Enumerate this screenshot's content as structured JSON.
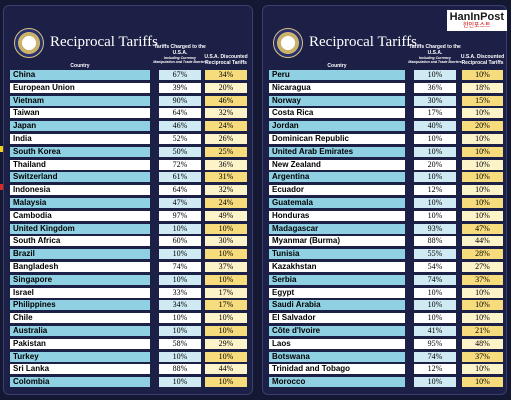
{
  "panels": [
    {
      "title": "Reciprocal Tariffs",
      "headers": {
        "country": "Country",
        "charged": "Tariffs Charged to the U.S.A.",
        "charged_note": "Including Currency Manipulation and Trade Barriers",
        "discounted": "U.S.A. Discounted Reciprocal Tariffs"
      },
      "rows": [
        [
          "China",
          "67%",
          "34%"
        ],
        [
          "European Union",
          "39%",
          "20%"
        ],
        [
          "Vietnam",
          "90%",
          "46%"
        ],
        [
          "Taiwan",
          "64%",
          "32%"
        ],
        [
          "Japan",
          "46%",
          "24%"
        ],
        [
          "India",
          "52%",
          "26%"
        ],
        [
          "South Korea",
          "50%",
          "25%"
        ],
        [
          "Thailand",
          "72%",
          "36%"
        ],
        [
          "Switzerland",
          "61%",
          "31%"
        ],
        [
          "Indonesia",
          "64%",
          "32%"
        ],
        [
          "Malaysia",
          "47%",
          "24%"
        ],
        [
          "Cambodia",
          "97%",
          "49%"
        ],
        [
          "United Kingdom",
          "10%",
          "10%"
        ],
        [
          "South Africa",
          "60%",
          "30%"
        ],
        [
          "Brazil",
          "10%",
          "10%"
        ],
        [
          "Bangladesh",
          "74%",
          "37%"
        ],
        [
          "Singapore",
          "10%",
          "10%"
        ],
        [
          "Israel",
          "33%",
          "17%"
        ],
        [
          "Philippines",
          "34%",
          "17%"
        ],
        [
          "Chile",
          "10%",
          "10%"
        ],
        [
          "Australia",
          "10%",
          "10%"
        ],
        [
          "Pakistan",
          "58%",
          "29%"
        ],
        [
          "Turkey",
          "10%",
          "10%"
        ],
        [
          "Sri Lanka",
          "88%",
          "44%"
        ],
        [
          "Colombia",
          "10%",
          "10%"
        ]
      ]
    },
    {
      "title": "Reciprocal Tariffs",
      "headers": {
        "country": "Country",
        "charged": "Tariffs Charged to the U.S.A.",
        "charged_note": "Including Currency Manipulation and Trade Barriers",
        "discounted": "U.S.A. Discounted Reciprocal Tariffs"
      },
      "rows": [
        [
          "Peru",
          "10%",
          "10%"
        ],
        [
          "Nicaragua",
          "36%",
          "18%"
        ],
        [
          "Norway",
          "30%",
          "15%"
        ],
        [
          "Costa Rica",
          "17%",
          "10%"
        ],
        [
          "Jordan",
          "40%",
          "20%"
        ],
        [
          "Dominican Republic",
          "10%",
          "10%"
        ],
        [
          "United Arab Emirates",
          "10%",
          "10%"
        ],
        [
          "New Zealand",
          "20%",
          "10%"
        ],
        [
          "Argentina",
          "10%",
          "10%"
        ],
        [
          "Ecuador",
          "12%",
          "10%"
        ],
        [
          "Guatemala",
          "10%",
          "10%"
        ],
        [
          "Honduras",
          "10%",
          "10%"
        ],
        [
          "Madagascar",
          "93%",
          "47%"
        ],
        [
          "Myanmar (Burma)",
          "88%",
          "44%"
        ],
        [
          "Tunisia",
          "55%",
          "28%"
        ],
        [
          "Kazakhstan",
          "54%",
          "27%"
        ],
        [
          "Serbia",
          "74%",
          "37%"
        ],
        [
          "Egypt",
          "10%",
          "10%"
        ],
        [
          "Saudi Arabia",
          "10%",
          "10%"
        ],
        [
          "El Salvador",
          "10%",
          "10%"
        ],
        [
          "Côte d'Ivoire",
          "41%",
          "21%"
        ],
        [
          "Laos",
          "95%",
          "48%"
        ],
        [
          "Botswana",
          "74%",
          "37%"
        ],
        [
          "Trinidad and Tobago",
          "12%",
          "10%"
        ],
        [
          "Morocco",
          "10%",
          "10%"
        ]
      ]
    }
  ],
  "watermark": {
    "brand": "HanInPost",
    "korean": "한인포스트"
  }
}
